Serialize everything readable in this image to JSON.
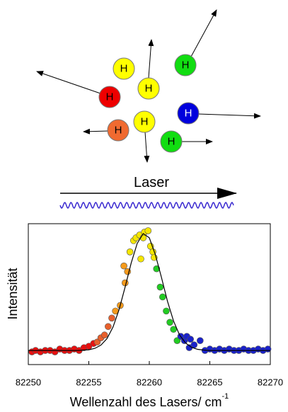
{
  "diagram": {
    "atoms": [
      {
        "label": "H"
      },
      {
        "label": "H"
      },
      {
        "label": "H"
      },
      {
        "label": "H"
      },
      {
        "label": "H"
      },
      {
        "label": "H"
      },
      {
        "label": "H"
      },
      {
        "label": "H"
      }
    ],
    "laser_label": "Laser"
  },
  "chart_data": {
    "type": "scatter",
    "x_label": "Wellenzahl des Lasers/ cm",
    "x_label_superscript": "-1",
    "y_label": "Intensität",
    "xlim": [
      82250,
      82270
    ],
    "xticks": [
      82250,
      82255,
      82260,
      82265,
      82270
    ],
    "ylim": [
      0,
      1
    ],
    "series": [
      {
        "type": "scatter",
        "color": "#e81010",
        "x": [
          82250.3,
          82250.6,
          82251.0,
          82251.4,
          82251.8,
          82252.2,
          82252.6,
          82253.0,
          82253.4,
          82253.8,
          82254.2,
          82254.6,
          82255.0,
          82255.4
        ],
        "values": [
          0.09,
          0.1,
          0.09,
          0.1,
          0.1,
          0.09,
          0.11,
          0.1,
          0.1,
          0.11,
          0.1,
          0.12,
          0.13,
          0.15
        ]
      },
      {
        "type": "scatter",
        "color": "#e8602c",
        "x": [
          82255.7,
          82256.0,
          82256.3,
          82256.6,
          82256.9
        ],
        "values": [
          0.16,
          0.19,
          0.21,
          0.27,
          0.33
        ]
      },
      {
        "type": "scatter",
        "color": "#f59a1b",
        "x": [
          82257.2,
          82257.6,
          82258.0,
          82258.2,
          82257.9
        ],
        "values": [
          0.38,
          0.42,
          0.58,
          0.66,
          0.7
        ]
      },
      {
        "type": "scatter",
        "color": "#f5e600",
        "x": [
          82258.4,
          82258.7,
          82258.9,
          82259.2,
          82259.5,
          82259.6,
          82259.9,
          82260.1,
          82260.3,
          82260.4,
          82259.3
        ],
        "values": [
          0.8,
          0.88,
          0.9,
          0.92,
          0.9,
          0.94,
          0.95,
          0.84,
          0.8,
          0.76,
          0.75
        ]
      },
      {
        "type": "scatter",
        "color": "#22cc22",
        "x": [
          82260.6,
          82260.9,
          82261.1,
          82261.4,
          82261.7,
          82262.0,
          82262.3
        ],
        "values": [
          0.68,
          0.55,
          0.48,
          0.38,
          0.3,
          0.25,
          0.17
        ]
      },
      {
        "type": "scatter",
        "color": "#1a22cc",
        "x": [
          82262.6,
          82262.9,
          82263.1,
          82263.4,
          82263.7,
          82264.2,
          82263.3,
          82264.6,
          82265.0,
          82265.4,
          82265.8,
          82266.2,
          82266.6,
          82267.0,
          82267.4,
          82267.8,
          82268.2,
          82268.6,
          82269.0,
          82269.4,
          82269.8
        ],
        "values": [
          0.2,
          0.17,
          0.2,
          0.18,
          0.14,
          0.17,
          0.12,
          0.1,
          0.11,
          0.1,
          0.11,
          0.1,
          0.11,
          0.1,
          0.1,
          0.11,
          0.1,
          0.1,
          0.11,
          0.1,
          0.11
        ]
      },
      {
        "type": "line",
        "color": "#000000",
        "x": [
          82250,
          82252,
          82254,
          82255,
          82255.5,
          82256,
          82256.5,
          82257,
          82257.5,
          82258,
          82258.5,
          82259,
          82259.5,
          82260,
          82260.5,
          82261,
          82261.5,
          82262,
          82262.5,
          82263,
          82263.5,
          82264,
          82264.5,
          82265,
          82267,
          82270
        ],
        "values": [
          0.1,
          0.1,
          0.1,
          0.105,
          0.115,
          0.138,
          0.184,
          0.266,
          0.39,
          0.55,
          0.72,
          0.86,
          0.93,
          0.9,
          0.78,
          0.62,
          0.45,
          0.31,
          0.21,
          0.153,
          0.122,
          0.108,
          0.103,
          0.1,
          0.1,
          0.1
        ]
      }
    ]
  }
}
